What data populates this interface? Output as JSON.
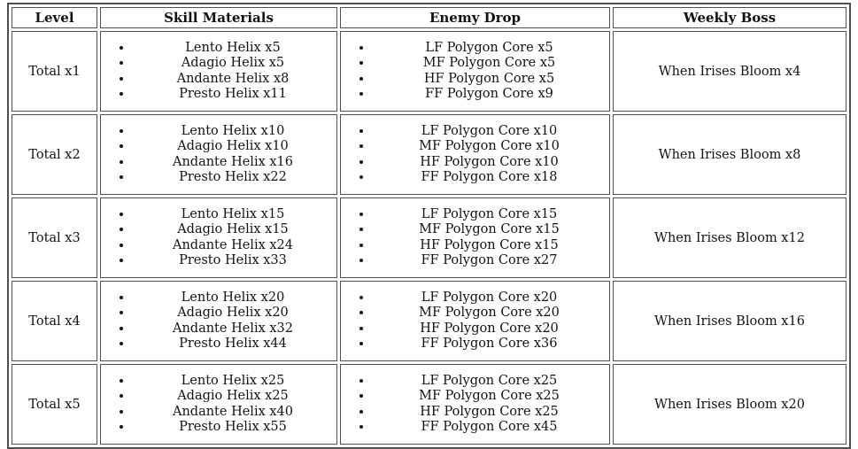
{
  "colors": {
    "border": "#4f4f4f",
    "text": "#121212",
    "background": "#ffffff"
  },
  "table": {
    "headers": [
      "Level",
      "Skill Materials",
      "Enemy Drop",
      "Weekly Boss"
    ],
    "rows": [
      {
        "level": "Total x1",
        "skill_materials": [
          "Lento Helix x5",
          "Adagio Helix x5",
          "Andante Helix x8",
          "Presto Helix x11"
        ],
        "enemy_drop": [
          "LF Polygon Core x5",
          "MF Polygon Core x5",
          "HF Polygon Core x5",
          "FF Polygon Core x9"
        ],
        "weekly_boss": "When Irises Bloom x4"
      },
      {
        "level": "Total x2",
        "skill_materials": [
          "Lento Helix x10",
          "Adagio Helix x10",
          "Andante Helix x16",
          "Presto Helix x22"
        ],
        "enemy_drop": [
          "LF Polygon Core x10",
          "MF Polygon Core x10",
          "HF Polygon Core x10",
          "FF Polygon Core x18"
        ],
        "weekly_boss": "When Irises Bloom x8"
      },
      {
        "level": "Total x3",
        "skill_materials": [
          "Lento Helix x15",
          "Adagio Helix x15",
          "Andante Helix x24",
          "Presto Helix x33"
        ],
        "enemy_drop": [
          "LF Polygon Core x15",
          "MF Polygon Core x15",
          "HF Polygon Core x15",
          "FF Polygon Core x27"
        ],
        "weekly_boss": "When Irises Bloom x12"
      },
      {
        "level": "Total x4",
        "skill_materials": [
          "Lento Helix x20",
          "Adagio Helix x20",
          "Andante Helix x32",
          "Presto Helix x44"
        ],
        "enemy_drop": [
          "LF Polygon Core x20",
          "MF Polygon Core x20",
          "HF Polygon Core x20",
          "FF Polygon Core x36"
        ],
        "weekly_boss": "When Irises Bloom x16"
      },
      {
        "level": "Total x5",
        "skill_materials": [
          "Lento Helix x25",
          "Adagio Helix x25",
          "Andante Helix x40",
          "Presto Helix x55"
        ],
        "enemy_drop": [
          "LF Polygon Core x25",
          "MF Polygon Core x25",
          "HF Polygon Core x25",
          "FF Polygon Core x45"
        ],
        "weekly_boss": "When Irises Bloom x20"
      }
    ]
  }
}
